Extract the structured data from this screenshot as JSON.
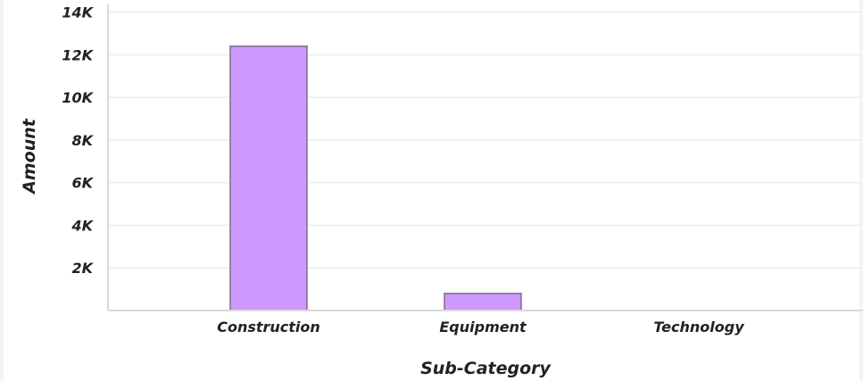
{
  "chart_data": {
    "type": "bar",
    "categories": [
      "Construction",
      "Equipment",
      "Technology"
    ],
    "values": [
      12400,
      800,
      0
    ],
    "xlabel": "Sub-Category",
    "ylabel": "Amount",
    "ylim": [
      0,
      14000
    ],
    "yticks": [
      {
        "value": 2000,
        "label": "2K"
      },
      {
        "value": 4000,
        "label": "4K"
      },
      {
        "value": 6000,
        "label": "6K"
      },
      {
        "value": 8000,
        "label": "8K"
      },
      {
        "value": 10000,
        "label": "10K"
      },
      {
        "value": 12000,
        "label": "12K"
      },
      {
        "value": 14000,
        "label": "14K"
      }
    ],
    "grid": true,
    "bar_color": "#cc99ff",
    "bar_stroke_color": "#7f6a8c"
  }
}
